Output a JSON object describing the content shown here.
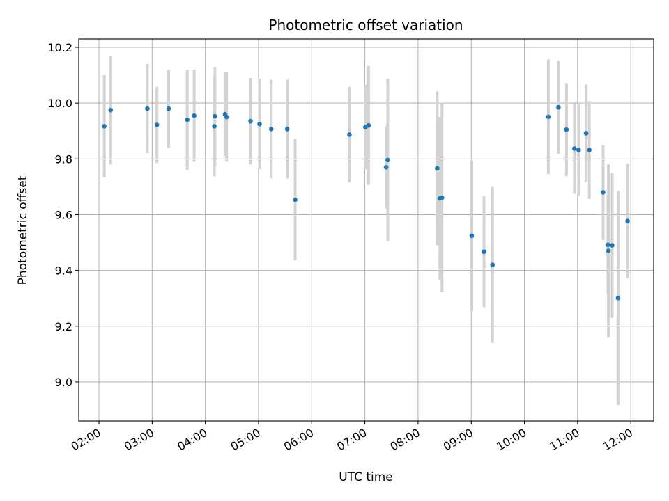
{
  "chart_data": {
    "type": "scatter",
    "title": "Photometric offset variation",
    "xlabel": "UTC time",
    "ylabel": "Photometric offset",
    "grid": true,
    "x_unit": "hours UTC",
    "xlim": [
      1.62,
      12.43
    ],
    "ylim": [
      8.86,
      10.23
    ],
    "xticks": [
      {
        "value": 2,
        "label": "02:00"
      },
      {
        "value": 3,
        "label": "03:00"
      },
      {
        "value": 4,
        "label": "04:00"
      },
      {
        "value": 5,
        "label": "05:00"
      },
      {
        "value": 6,
        "label": "06:00"
      },
      {
        "value": 7,
        "label": "07:00"
      },
      {
        "value": 8,
        "label": "08:00"
      },
      {
        "value": 9,
        "label": "09:00"
      },
      {
        "value": 10,
        "label": "10:00"
      },
      {
        "value": 11,
        "label": "11:00"
      },
      {
        "value": 12,
        "label": "12:00"
      }
    ],
    "yticks": [
      {
        "value": 9.0,
        "label": "9.0"
      },
      {
        "value": 9.2,
        "label": "9.2"
      },
      {
        "value": 9.4,
        "label": "9.4"
      },
      {
        "value": 9.6,
        "label": "9.6"
      },
      {
        "value": 9.8,
        "label": "9.8"
      },
      {
        "value": 10.0,
        "label": "10.0"
      },
      {
        "value": 10.2,
        "label": "10.2"
      }
    ],
    "series": [
      {
        "name": "photometric offset",
        "point_color": "#1f77b4",
        "errorbar_color": "#d3d3d3",
        "points": [
          {
            "x": 2.1,
            "y": 9.917,
            "err": 0.183
          },
          {
            "x": 2.22,
            "y": 9.975,
            "err": 0.195
          },
          {
            "x": 2.91,
            "y": 9.98,
            "err": 0.16
          },
          {
            "x": 3.09,
            "y": 9.922,
            "err": 0.137
          },
          {
            "x": 3.31,
            "y": 9.98,
            "err": 0.14
          },
          {
            "x": 3.66,
            "y": 9.94,
            "err": 0.18
          },
          {
            "x": 3.79,
            "y": 9.955,
            "err": 0.165
          },
          {
            "x": 4.17,
            "y": 9.917,
            "err": 0.18
          },
          {
            "x": 4.18,
            "y": 9.953,
            "err": 0.177
          },
          {
            "x": 4.37,
            "y": 9.96,
            "err": 0.15
          },
          {
            "x": 4.4,
            "y": 9.95,
            "err": 0.16
          },
          {
            "x": 4.85,
            "y": 9.935,
            "err": 0.155
          },
          {
            "x": 5.02,
            "y": 9.925,
            "err": 0.162
          },
          {
            "x": 5.24,
            "y": 9.907,
            "err": 0.177
          },
          {
            "x": 5.54,
            "y": 9.907,
            "err": 0.177
          },
          {
            "x": 5.69,
            "y": 9.653,
            "err": 0.217
          },
          {
            "x": 6.71,
            "y": 9.887,
            "err": 0.171
          },
          {
            "x": 7.01,
            "y": 9.914,
            "err": 0.152
          },
          {
            "x": 7.07,
            "y": 9.92,
            "err": 0.213
          },
          {
            "x": 7.4,
            "y": 9.77,
            "err": 0.148
          },
          {
            "x": 7.43,
            "y": 9.796,
            "err": 0.291
          },
          {
            "x": 8.36,
            "y": 9.766,
            "err": 0.276
          },
          {
            "x": 8.41,
            "y": 9.658,
            "err": 0.292
          },
          {
            "x": 8.45,
            "y": 9.661,
            "err": 0.339
          },
          {
            "x": 9.01,
            "y": 9.524,
            "err": 0.269
          },
          {
            "x": 9.24,
            "y": 9.467,
            "err": 0.199
          },
          {
            "x": 9.4,
            "y": 9.42,
            "err": 0.28
          },
          {
            "x": 10.45,
            "y": 9.951,
            "err": 0.206
          },
          {
            "x": 10.64,
            "y": 9.985,
            "err": 0.167
          },
          {
            "x": 10.79,
            "y": 9.905,
            "err": 0.167
          },
          {
            "x": 10.94,
            "y": 9.837,
            "err": 0.162
          },
          {
            "x": 11.02,
            "y": 9.832,
            "err": 0.163
          },
          {
            "x": 11.16,
            "y": 9.892,
            "err": 0.175
          },
          {
            "x": 11.22,
            "y": 9.832,
            "err": 0.176
          },
          {
            "x": 11.48,
            "y": 9.68,
            "err": 0.171
          },
          {
            "x": 11.57,
            "y": 9.492,
            "err": 0.177
          },
          {
            "x": 11.58,
            "y": 9.47,
            "err": 0.311
          },
          {
            "x": 11.65,
            "y": 9.49,
            "err": 0.261
          },
          {
            "x": 11.76,
            "y": 9.301,
            "err": 0.384
          },
          {
            "x": 11.94,
            "y": 9.577,
            "err": 0.206
          }
        ]
      }
    ]
  }
}
